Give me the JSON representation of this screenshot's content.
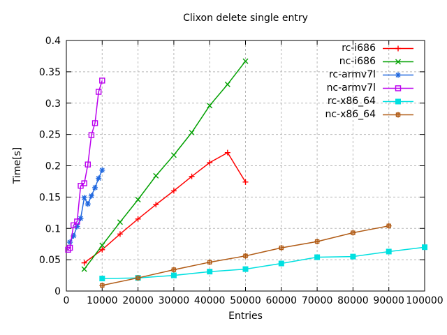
{
  "chart_data": {
    "type": "line",
    "title": "Clixon delete single entry",
    "xlabel": "Entries",
    "ylabel": "Time[s]",
    "xlim": [
      0,
      100000
    ],
    "ylim": [
      0,
      0.4
    ],
    "x_ticks": [
      0,
      10000,
      20000,
      30000,
      40000,
      50000,
      60000,
      70000,
      80000,
      90000,
      100000
    ],
    "y_ticks": [
      0,
      0.05,
      0.1,
      0.15,
      0.2,
      0.25,
      0.3,
      0.35,
      0.4
    ],
    "grid": true,
    "grid_color": "#b8b8b8",
    "frame_color": "#000000",
    "legend_position": "top-right-inside",
    "series": [
      {
        "name": "rc-i686",
        "color": "#ff0000",
        "marker": "plus",
        "x": [
          5000,
          10000,
          15000,
          20000,
          25000,
          30000,
          35000,
          40000,
          45000,
          50000
        ],
        "y": [
          0.045,
          0.066,
          0.091,
          0.115,
          0.138,
          0.16,
          0.183,
          0.205,
          0.221,
          0.174
        ]
      },
      {
        "name": "nc-i686",
        "color": "#00a000",
        "marker": "cross",
        "x": [
          5000,
          10000,
          15000,
          20000,
          25000,
          30000,
          35000,
          40000,
          45000,
          50000
        ],
        "y": [
          0.035,
          0.073,
          0.11,
          0.146,
          0.184,
          0.217,
          0.253,
          0.296,
          0.33,
          0.367
        ]
      },
      {
        "name": "rc-armv7l",
        "color": "#2068df",
        "marker": "asterisk",
        "x": [
          1000,
          2000,
          3000,
          4000,
          5000,
          6000,
          7000,
          8000,
          9000,
          10000
        ],
        "y": [
          0.078,
          0.088,
          0.103,
          0.116,
          0.149,
          0.139,
          0.152,
          0.165,
          0.18,
          0.193
        ]
      },
      {
        "name": "nc-armv7l",
        "color": "#bb00ee",
        "marker": "square-open",
        "x": [
          500,
          1000,
          2000,
          3000,
          4000,
          5000,
          6000,
          7000,
          8000,
          9000,
          10000
        ],
        "y": [
          0.066,
          0.069,
          0.105,
          0.111,
          0.168,
          0.172,
          0.202,
          0.249,
          0.268,
          0.318,
          0.336
        ]
      },
      {
        "name": "rc-x86_64",
        "color": "#00e0e0",
        "marker": "square-filled",
        "x": [
          10000,
          20000,
          30000,
          40000,
          50000,
          60000,
          70000,
          80000,
          90000,
          100000
        ],
        "y": [
          0.02,
          0.021,
          0.025,
          0.031,
          0.035,
          0.044,
          0.054,
          0.055,
          0.063,
          0.07
        ]
      },
      {
        "name": "nc-x86_64",
        "color": "#b05a14",
        "marker": "square-plus",
        "x": [
          10000,
          20000,
          30000,
          40000,
          50000,
          60000,
          70000,
          80000,
          90000
        ],
        "y": [
          0.009,
          0.021,
          0.034,
          0.046,
          0.056,
          0.069,
          0.079,
          0.093,
          0.104
        ]
      }
    ]
  }
}
